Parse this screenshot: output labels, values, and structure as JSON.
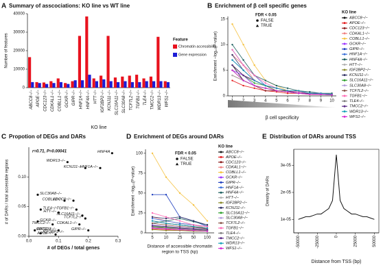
{
  "chart_data": [
    {
      "type": "bar",
      "panel": "A",
      "title": "Summary of asscociations: KO line vs WT line",
      "xlabel": "KO line",
      "ylabel": "Number of features",
      "categories": [
        "ABCC8−/−",
        "APOE−/−",
        "CDC123−/−",
        "CDKAL1−/−",
        "COBLL1−/−",
        "GCKR−/−",
        "GIPR−/−",
        "HNF1A−/−",
        "HNF4A−/−",
        "HTT−/−",
        "IGF2BP2−/−",
        "KCNJ11−/−",
        "SLC16A11−/−",
        "SLC30A8−/−",
        "TCF7L2−/−",
        "TGFB1−/−",
        "TLE4−/−",
        "TMCC2−/−",
        "WDR13−/−",
        "WFS1−/−"
      ],
      "series": [
        {
          "name": "Chromatin accessibility",
          "color": "#e8121e",
          "values": [
            16500,
            3000,
            2800,
            3500,
            5000,
            2500,
            3500,
            28000,
            38500,
            5000,
            6500,
            28000,
            5500,
            6000,
            6500,
            7000,
            5000,
            6000,
            27500,
            3500
          ]
        },
        {
          "name": "Gene expression",
          "color": "#1c1cd6",
          "values": [
            3000,
            2500,
            2000,
            2500,
            3000,
            2000,
            4000,
            4000,
            7000,
            3500,
            4500,
            3500,
            3000,
            3500,
            3000,
            3000,
            3500,
            3500,
            3500,
            3000
          ]
        }
      ],
      "legend_title": "Feature",
      "ylim": [
        0,
        40000
      ],
      "yticks": [
        0,
        10000,
        20000,
        30000,
        40000
      ]
    },
    {
      "type": "line",
      "panel": "B",
      "title": "Enrichment of β cell specific genes",
      "xlabel": "β cell specificity",
      "ylabel": "Enrichment −log₁₀(P-value)",
      "x": [
        1,
        2,
        3,
        4,
        5,
        6,
        7,
        8,
        9,
        10
      ],
      "xlim": [
        0.6,
        10.4
      ],
      "xticks": [
        1,
        2,
        3,
        4,
        5,
        6,
        7,
        8,
        9,
        10
      ],
      "ylim": [
        0,
        15.5
      ],
      "yticks": [
        0,
        5,
        10,
        15
      ],
      "shape_legend": {
        "title": "FDR < 0.05",
        "entries": [
          "FALSE",
          "TRUE"
        ]
      },
      "legend_title": "KO line",
      "series": [
        {
          "name": "ABCC8−/−",
          "color": "#111111",
          "values": [
            6,
            3,
            2,
            1.5,
            1,
            0.8,
            0.5,
            0.5,
            0.3,
            0.3
          ]
        },
        {
          "name": "APOE−/−",
          "color": "#e41a1c",
          "values": [
            3,
            2,
            1.5,
            1,
            0.8,
            0.5,
            0.5,
            0.3,
            0.3,
            0.2
          ]
        },
        {
          "name": "CDC123−/−",
          "color": "#8b1a1a",
          "values": [
            4,
            3,
            2,
            1,
            1,
            0.8,
            0.5,
            0.5,
            0.3,
            0.3
          ]
        },
        {
          "name": "CDKAL1−/−",
          "color": "#f08080",
          "values": [
            8,
            6,
            3,
            2,
            1.5,
            1,
            1,
            0.5,
            0.5,
            0.3
          ]
        },
        {
          "name": "COBLL1−/−",
          "color": "#f5c242",
          "values": [
            14,
            10,
            6,
            3,
            2,
            1,
            1,
            0.5,
            0.5,
            0.3
          ]
        },
        {
          "name": "GCKR−/−",
          "color": "#9b30ff",
          "values": [
            5,
            4,
            2,
            1.5,
            1,
            1,
            0.8,
            0.5,
            0.3,
            0.3
          ]
        },
        {
          "name": "GIPR−/−",
          "color": "#1f3fbf",
          "values": [
            7,
            5,
            3,
            2,
            1.5,
            1,
            0.8,
            0.5,
            0.5,
            0.3
          ]
        },
        {
          "name": "HNF1A−/−",
          "color": "#3a6fd8",
          "values": [
            9,
            6,
            4,
            2,
            1.5,
            1,
            1,
            0.5,
            0.5,
            0.3
          ]
        },
        {
          "name": "HNF4A−/−",
          "color": "#1b5e5e",
          "values": [
            10,
            7,
            4,
            3,
            2,
            1.5,
            1,
            0.8,
            0.5,
            0.5
          ]
        },
        {
          "name": "HTT−/−",
          "color": "#b0b0b0",
          "values": [
            4,
            3,
            2,
            1.5,
            1,
            0.8,
            0.5,
            0.5,
            0.3,
            0.3
          ]
        },
        {
          "name": "IGF2BP2−/−",
          "color": "#8a8a2a",
          "values": [
            5,
            3,
            2,
            1.5,
            1,
            1,
            0.5,
            0.5,
            0.3,
            0.2
          ]
        },
        {
          "name": "KCNJ11−/−",
          "color": "#333366",
          "values": [
            8,
            5,
            3,
            2,
            1.5,
            1,
            0.8,
            0.5,
            0.5,
            0.3
          ]
        },
        {
          "name": "SLC16A11−/−",
          "color": "#2ca02c",
          "values": [
            6,
            4,
            2.5,
            2,
            1,
            1,
            0.5,
            0.5,
            0.3,
            0.3
          ]
        },
        {
          "name": "SLC30A8−/−",
          "color": "#b39ddb",
          "values": [
            7,
            5,
            3,
            2,
            1.5,
            1,
            0.8,
            0.5,
            0.3,
            0.3
          ]
        },
        {
          "name": "TCF7L2−/−",
          "color": "#8c564b",
          "values": [
            6,
            4,
            3,
            2,
            1,
            1,
            0.5,
            0.5,
            0.3,
            0.3
          ]
        },
        {
          "name": "TGFB1−/−",
          "color": "#ff69b4",
          "values": [
            9,
            6,
            4,
            2.5,
            1.5,
            1,
            0.8,
            0.5,
            0.5,
            0.3
          ]
        },
        {
          "name": "TLE4−/−",
          "color": "#7f7f7f",
          "values": [
            5,
            3,
            2,
            1.5,
            1,
            0.8,
            0.5,
            0.5,
            0.3,
            0.2
          ]
        },
        {
          "name": "TMCC2−/−",
          "color": "#5b2a86",
          "values": [
            6,
            4,
            3,
            2,
            1.5,
            1,
            0.5,
            0.5,
            0.3,
            0.3
          ]
        },
        {
          "name": "WDR13−/−",
          "color": "#17a2b8",
          "values": [
            7,
            5,
            3,
            2,
            1.5,
            1,
            1,
            0.5,
            0.5,
            0.3
          ]
        },
        {
          "name": "WFS1−/−",
          "color": "#d62ad6",
          "values": [
            5,
            3,
            2,
            1.5,
            1,
            0.8,
            0.5,
            0.3,
            0.3,
            0.2
          ]
        }
      ]
    },
    {
      "type": "scatter",
      "panel": "C",
      "title": "Propotion of DEGs and DARs",
      "annotation": "r=0.71, P=0.00041",
      "xlabel": "# of DEGs / total genes",
      "ylabel": "# of DARs / total accessible regions",
      "xlim": [
        0,
        0.3
      ],
      "xticks": [
        {
          "value": 0,
          "label": "0.0"
        },
        0.1,
        0.2,
        0.3
      ],
      "ylim": [
        0,
        0.15
      ],
      "yticks": [
        {
          "value": 0,
          "label": "0.00"
        },
        0.05,
        {
          "value": 0.1,
          "label": "0.10"
        }
      ],
      "labels": [
        "HNF4A",
        "HNF1A−/−",
        "KCNJ11−/−",
        "WDR13−/−",
        "SLC30A8−/−",
        "COBLL1−/−",
        "ABCC8−/−",
        "TGFB1−/−",
        "TLE4−/−",
        "HTT−/−",
        "SLC16A11−/−",
        "TCF7L2−/−",
        "GCKR−/−",
        "TMCC2−/−",
        "CDKAL1−/−",
        "GIPR−/−",
        "WFS1−/−",
        "CDC123−/−",
        "IGF2BP2−/−",
        "APOE−/−"
      ],
      "x": [
        0.28,
        0.24,
        0.19,
        0.13,
        0.03,
        0.12,
        0.15,
        0.16,
        0.04,
        0.1,
        0.18,
        0.19,
        0.03,
        0.08,
        0.17,
        0.2,
        0.02,
        0.1,
        0.04,
        0.09
      ],
      "y": [
        0.14,
        0.115,
        0.115,
        0.125,
        0.07,
        0.06,
        0.06,
        0.045,
        0.045,
        0.04,
        0.035,
        0.03,
        0.025,
        0.02,
        0.02,
        0.01,
        0.01,
        0.01,
        0.005,
        0.003
      ]
    },
    {
      "type": "line",
      "panel": "D",
      "title": "Enrichment of DEGs around DARs",
      "xlabel": [
        "Distance of accessible chromatin",
        "region to TSS (kp)"
      ],
      "ylabel": "Enrichment −log₁₀(P-value)",
      "categories": [
        "5",
        "10",
        "25",
        "50",
        "100"
      ],
      "ylim": [
        0,
        105
      ],
      "yticks": [
        0,
        25,
        50,
        75,
        100
      ],
      "shape_legend": {
        "title": "FDR < 0.05",
        "entries": [
          "FALSE",
          "TRUE"
        ]
      },
      "legend_title": "KO line",
      "series": [
        {
          "name": "ABCC8−/−",
          "color": "#111111",
          "values": [
            15,
            12,
            10,
            8,
            5
          ]
        },
        {
          "name": "APOE−/−",
          "color": "#e41a1c",
          "values": [
            5,
            4,
            3,
            3,
            2
          ]
        },
        {
          "name": "CDC123−/−",
          "color": "#8b1a1a",
          "values": [
            8,
            6,
            5,
            4,
            3
          ]
        },
        {
          "name": "CDKAL1−/−",
          "color": "#f08080",
          "values": [
            20,
            15,
            12,
            10,
            6
          ]
        },
        {
          "name": "COBLL1−/−",
          "color": "#f5c242",
          "values": [
            100,
            70,
            50,
            35,
            15
          ]
        },
        {
          "name": "GCKR−/−",
          "color": "#9b30ff",
          "values": [
            10,
            8,
            6,
            5,
            3
          ]
        },
        {
          "name": "GIPR−/−",
          "color": "#1f3fbf",
          "values": [
            48,
            48,
            20,
            15,
            8
          ]
        },
        {
          "name": "HNF1A−/−",
          "color": "#3a6fd8",
          "values": [
            18,
            15,
            12,
            10,
            8
          ]
        },
        {
          "name": "HNF4A−/−",
          "color": "#1b5e5e",
          "values": [
            12,
            15,
            18,
            14,
            10
          ]
        },
        {
          "name": "HTT−/−",
          "color": "#b0b0b0",
          "values": [
            6,
            5,
            4,
            3,
            2
          ]
        },
        {
          "name": "IGF2BP2−/−",
          "color": "#8a8a2a",
          "values": [
            4,
            3,
            3,
            2,
            2
          ]
        },
        {
          "name": "KCNJ11−/−",
          "color": "#333366",
          "values": [
            20,
            18,
            20,
            15,
            10
          ]
        },
        {
          "name": "SLC16A11−/−",
          "color": "#2ca02c",
          "values": [
            8,
            7,
            6,
            5,
            3
          ]
        },
        {
          "name": "SLC30A8−/−",
          "color": "#b39ddb",
          "values": [
            10,
            8,
            7,
            6,
            4
          ]
        },
        {
          "name": "TCF7L2−/−",
          "color": "#8c564b",
          "values": [
            12,
            10,
            8,
            7,
            5
          ]
        },
        {
          "name": "TGFB1−/−",
          "color": "#ff69b4",
          "values": [
            25,
            20,
            15,
            10,
            8
          ]
        },
        {
          "name": "TLE4−/−",
          "color": "#7f7f7f",
          "values": [
            7,
            6,
            5,
            4,
            3
          ]
        },
        {
          "name": "TMCC2−/−",
          "color": "#5b2a86",
          "values": [
            9,
            8,
            6,
            5,
            4
          ]
        },
        {
          "name": "WDR13−/−",
          "color": "#17a2b8",
          "values": [
            15,
            12,
            10,
            8,
            6
          ]
        },
        {
          "name": "WFS1−/−",
          "color": "#d62ad6",
          "values": [
            6,
            5,
            4,
            3,
            2
          ]
        }
      ]
    },
    {
      "type": "density",
      "panel": "E",
      "title": "Distribution of DARs around TSS",
      "xlabel": "Distance from TSS (bp)",
      "ylabel": "Density of DARs",
      "x": [
        -50000,
        -45000,
        -40000,
        -35000,
        -30000,
        -25000,
        -20000,
        -15000,
        -10000,
        -5000,
        0,
        5000,
        10000,
        15000,
        20000,
        25000,
        30000,
        35000,
        40000,
        45000,
        50000
      ],
      "values": [
        1e-05,
        1.05e-05,
        1.1e-05,
        1.1e-05,
        1.15e-05,
        1.2e-05,
        1.2e-05,
        1.3e-05,
        1.4e-05,
        1.7e-05,
        3.4e-05,
        1.7e-05,
        1.4e-05,
        1.3e-05,
        1.2e-05,
        1.2e-05,
        1.15e-05,
        1.1e-05,
        1.1e-05,
        1.05e-05,
        1e-05
      ],
      "color": "#111111",
      "xlim": [
        -56000,
        56000
      ],
      "xticks": [
        -50000,
        -25000,
        0,
        25000,
        50000
      ],
      "ylim": [
        5e-06,
        3.6e-05
      ],
      "yticks": [
        {
          "value": 1e-05,
          "label": "1e-05"
        },
        {
          "value": 2e-05,
          "label": "2e-05"
        },
        {
          "value": 3e-05,
          "label": "3e-05"
        }
      ]
    }
  ]
}
